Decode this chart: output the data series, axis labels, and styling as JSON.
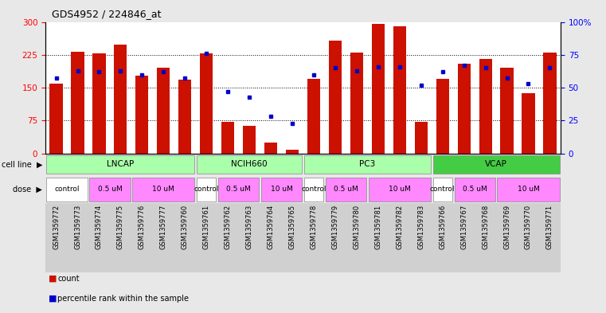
{
  "title": "GDS4952 / 224846_at",
  "samples": [
    "GSM1359772",
    "GSM1359773",
    "GSM1359774",
    "GSM1359775",
    "GSM1359776",
    "GSM1359777",
    "GSM1359760",
    "GSM1359761",
    "GSM1359762",
    "GSM1359763",
    "GSM1359764",
    "GSM1359765",
    "GSM1359778",
    "GSM1359779",
    "GSM1359780",
    "GSM1359781",
    "GSM1359782",
    "GSM1359783",
    "GSM1359766",
    "GSM1359767",
    "GSM1359768",
    "GSM1359769",
    "GSM1359770",
    "GSM1359771"
  ],
  "counts": [
    160,
    232,
    228,
    248,
    178,
    195,
    168,
    228,
    72,
    62,
    25,
    8,
    170,
    258,
    230,
    295,
    290,
    72,
    170,
    205,
    215,
    195,
    138,
    230
  ],
  "percentile_ranks": [
    57,
    63,
    62,
    63,
    60,
    62,
    57,
    76,
    47,
    43,
    28,
    23,
    60,
    65,
    63,
    66,
    66,
    52,
    62,
    67,
    65,
    57,
    53,
    65
  ],
  "cell_line_groups": [
    {
      "label": "LNCAP",
      "start": 0,
      "end": 7,
      "color": "#aaffaa"
    },
    {
      "label": "NCIH660",
      "start": 7,
      "end": 12,
      "color": "#aaffaa"
    },
    {
      "label": "PC3",
      "start": 12,
      "end": 18,
      "color": "#aaffaa"
    },
    {
      "label": "VCAP",
      "start": 18,
      "end": 24,
      "color": "#44cc44"
    }
  ],
  "dose_groups": [
    {
      "label": "control",
      "start": 0,
      "end": 2,
      "color": "#ffffff"
    },
    {
      "label": "0.5 uM",
      "start": 2,
      "end": 4,
      "color": "#ff88ff"
    },
    {
      "label": "10 uM",
      "start": 4,
      "end": 7,
      "color": "#ff88ff"
    },
    {
      "label": "control",
      "start": 7,
      "end": 8,
      "color": "#ffffff"
    },
    {
      "label": "0.5 uM",
      "start": 8,
      "end": 10,
      "color": "#ff88ff"
    },
    {
      "label": "10 uM",
      "start": 10,
      "end": 12,
      "color": "#ff88ff"
    },
    {
      "label": "control",
      "start": 12,
      "end": 13,
      "color": "#ffffff"
    },
    {
      "label": "0.5 uM",
      "start": 13,
      "end": 15,
      "color": "#ff88ff"
    },
    {
      "label": "10 uM",
      "start": 15,
      "end": 18,
      "color": "#ff88ff"
    },
    {
      "label": "control",
      "start": 18,
      "end": 19,
      "color": "#ffffff"
    },
    {
      "label": "0.5 uM",
      "start": 19,
      "end": 21,
      "color": "#ff88ff"
    },
    {
      "label": "10 uM",
      "start": 21,
      "end": 24,
      "color": "#ff88ff"
    }
  ],
  "bar_color": "#cc1100",
  "dot_color": "#0000cc",
  "ylim": [
    0,
    300
  ],
  "yticks_left": [
    0,
    75,
    150,
    225,
    300
  ],
  "yticks_right": [
    0,
    25,
    50,
    75,
    100
  ],
  "grid_lines": [
    75,
    150,
    225
  ],
  "bar_width": 0.6,
  "bg_color": "#e8e8e8",
  "plot_bg": "#ffffff"
}
